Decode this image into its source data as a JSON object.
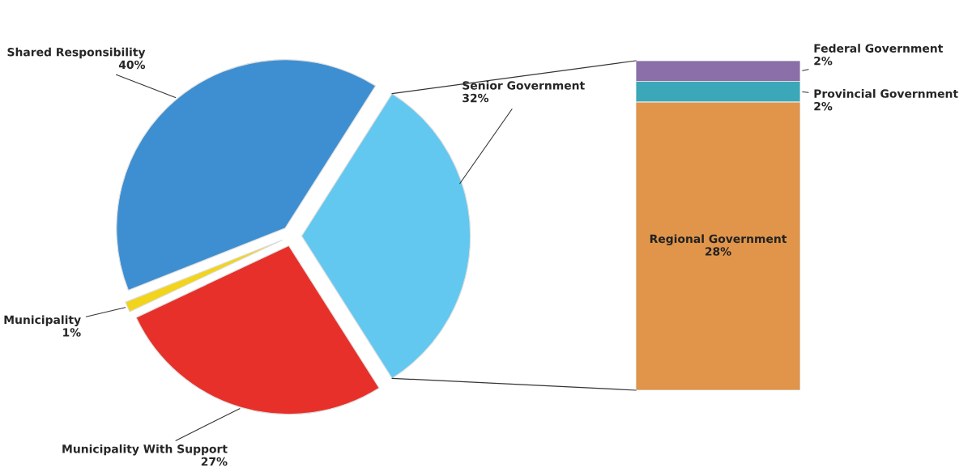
{
  "chart_data": [
    {
      "type": "pie",
      "categories": [
        "Senior Government",
        "Shared Responsibility",
        "Municipality",
        "Municipality With Support"
      ],
      "values": [
        32,
        40,
        1,
        27
      ],
      "value_labels": [
        "32%",
        "40%",
        "1%",
        "27%"
      ],
      "colors": [
        "#62c8f0",
        "#3d8fd1",
        "#f2d41c",
        "#e8302a"
      ]
    },
    {
      "type": "bar",
      "stacked": true,
      "categories": [
        null
      ],
      "series": [
        {
          "name": "Regional Government",
          "color": "#e0954a",
          "values": [
            28
          ],
          "value_labels": [
            "28%"
          ]
        },
        {
          "name": "Provincial Government",
          "color": "#3aa8b8",
          "values": [
            2
          ],
          "value_labels": [
            "2%"
          ]
        },
        {
          "name": "Federal Government",
          "color": "#8a6fa8",
          "values": [
            2
          ],
          "value_labels": [
            "2%"
          ]
        }
      ]
    }
  ]
}
